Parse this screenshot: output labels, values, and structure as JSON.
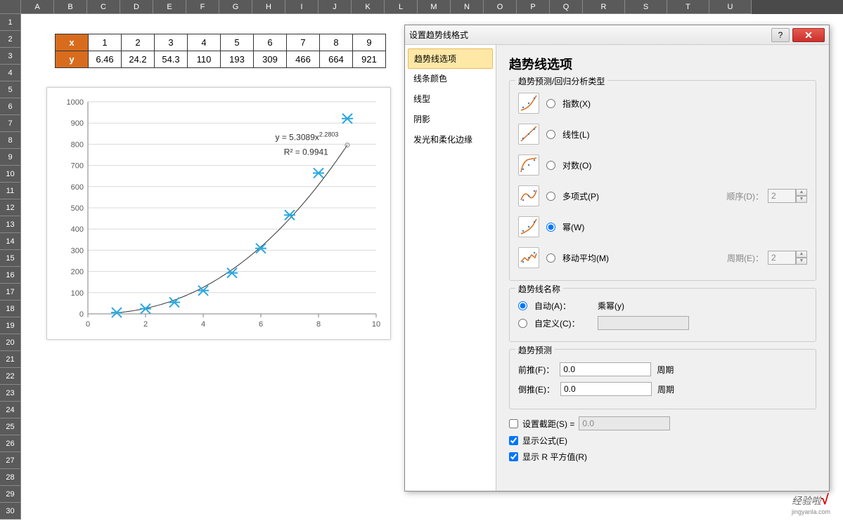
{
  "grid": {
    "columns": [
      "A",
      "B",
      "C",
      "D",
      "E",
      "F",
      "G",
      "H",
      "I",
      "J",
      "K",
      "L",
      "M",
      "N",
      "O",
      "P",
      "Q",
      "R",
      "S",
      "T",
      "U"
    ],
    "row_count": 30
  },
  "data_table": {
    "header_bg": "#d86c1e",
    "header_fg": "#ffffff",
    "row_x_label": "x",
    "row_y_label": "y",
    "x": [
      1,
      2,
      3,
      4,
      5,
      6,
      7,
      8,
      9
    ],
    "y": [
      6.46,
      24.2,
      54.3,
      110,
      193,
      309,
      466,
      664,
      921
    ]
  },
  "chart": {
    "type": "scatter",
    "x": [
      1,
      2,
      3,
      4,
      5,
      6,
      7,
      8,
      9
    ],
    "y": [
      6.46,
      24.2,
      54.3,
      110,
      193,
      309,
      466,
      664,
      921
    ],
    "marker_color": "#2ca8e0",
    "marker_style": "x-star",
    "marker_size": 7,
    "trendline": {
      "type": "power",
      "a": 5.3089,
      "b": 2.2803,
      "color": "#333333",
      "width": 1
    },
    "equation_text": "y = 5.3089x",
    "equation_exp": "2.2803",
    "r2_text": "R² = 0.9941",
    "xlim": [
      0,
      10
    ],
    "xtick_step": 2,
    "ylim": [
      0,
      1000
    ],
    "ytick_step": 100,
    "grid_color": "#d9d9d9",
    "axis_color": "#808080",
    "tick_fontsize": 11,
    "background_color": "#ffffff"
  },
  "dialog": {
    "title": "设置趋势线格式",
    "sidebar": {
      "items": [
        {
          "label": "趋势线选项",
          "selected": true
        },
        {
          "label": "线条颜色",
          "selected": false
        },
        {
          "label": "线型",
          "selected": false
        },
        {
          "label": "阴影",
          "selected": false
        },
        {
          "label": "发光和柔化边缘",
          "selected": false
        }
      ]
    },
    "main_title": "趋势线选项",
    "regression_group_label": "趋势预测/回归分析类型",
    "regression_options": [
      {
        "key": "exp",
        "label": "指数(X)",
        "selected": false
      },
      {
        "key": "linear",
        "label": "线性(L)",
        "selected": false
      },
      {
        "key": "log",
        "label": "对数(O)",
        "selected": false
      },
      {
        "key": "poly",
        "label": "多项式(P)",
        "selected": false,
        "extra_label": "顺序(D)：",
        "extra_value": "2"
      },
      {
        "key": "power",
        "label": "幂(W)",
        "selected": true
      },
      {
        "key": "movavg",
        "label": "移动平均(M)",
        "selected": false,
        "extra_label": "周期(E)：",
        "extra_value": "2"
      }
    ],
    "name_group_label": "趋势线名称",
    "name_auto_label": "自动(A)：",
    "name_auto_value": "乘幂(y)",
    "name_auto_selected": true,
    "name_custom_label": "自定义(C)：",
    "name_custom_value": "",
    "forecast_group_label": "趋势预测",
    "forecast_forward_label": "前推(F)：",
    "forecast_forward_value": "0.0",
    "forecast_backward_label": "倒推(E)：",
    "forecast_backward_value": "0.0",
    "forecast_unit": "周期",
    "intercept_label": "设置截距(S) =",
    "intercept_value": "0.0",
    "intercept_checked": false,
    "show_eq_label": "显示公式(E)",
    "show_eq_checked": true,
    "show_r2_label": "显示 R 平方值(R)",
    "show_r2_checked": true
  },
  "watermark": {
    "text": "经验啦",
    "check": "√",
    "sub": "jingyanla.com"
  }
}
